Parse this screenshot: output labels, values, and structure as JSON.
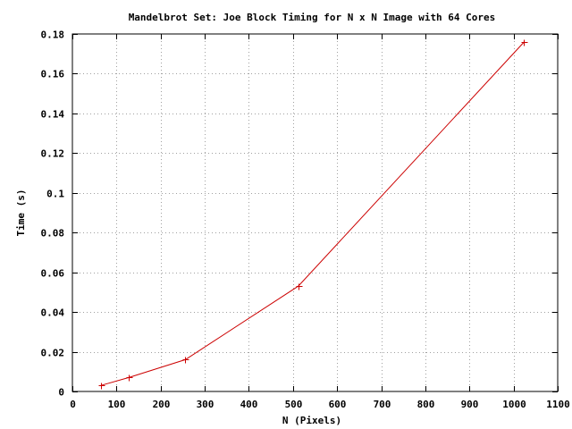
{
  "chart_data": {
    "type": "line",
    "title": "Mandelbrot Set: Joe Block Timing for N x N Image with 64 Cores",
    "xlabel": "N (Pixels)",
    "ylabel": "Time (s)",
    "xlim": [
      0,
      1100
    ],
    "ylim": [
      0,
      0.18
    ],
    "xticks": [
      0,
      100,
      200,
      300,
      400,
      500,
      600,
      700,
      800,
      900,
      1000,
      1100
    ],
    "xtick_labels": [
      "0",
      "100",
      "200",
      "300",
      "400",
      "500",
      "600",
      "700",
      "800",
      "900",
      "1000",
      "1100"
    ],
    "yticks": [
      0,
      0.02,
      0.04,
      0.06,
      0.08,
      0.1,
      0.12,
      0.14,
      0.16,
      0.18
    ],
    "ytick_labels": [
      "0",
      "0.02",
      "0.04",
      "0.06",
      "0.08",
      "0.1",
      "0.12",
      "0.14",
      "0.16",
      "0.18"
    ],
    "grid": true,
    "legend": "none",
    "series": [
      {
        "color": "#cc0000",
        "marker": "plus",
        "x": [
          64,
          128,
          256,
          512,
          1024
        ],
        "y": [
          0.003,
          0.007,
          0.016,
          0.053,
          0.176
        ]
      }
    ]
  }
}
